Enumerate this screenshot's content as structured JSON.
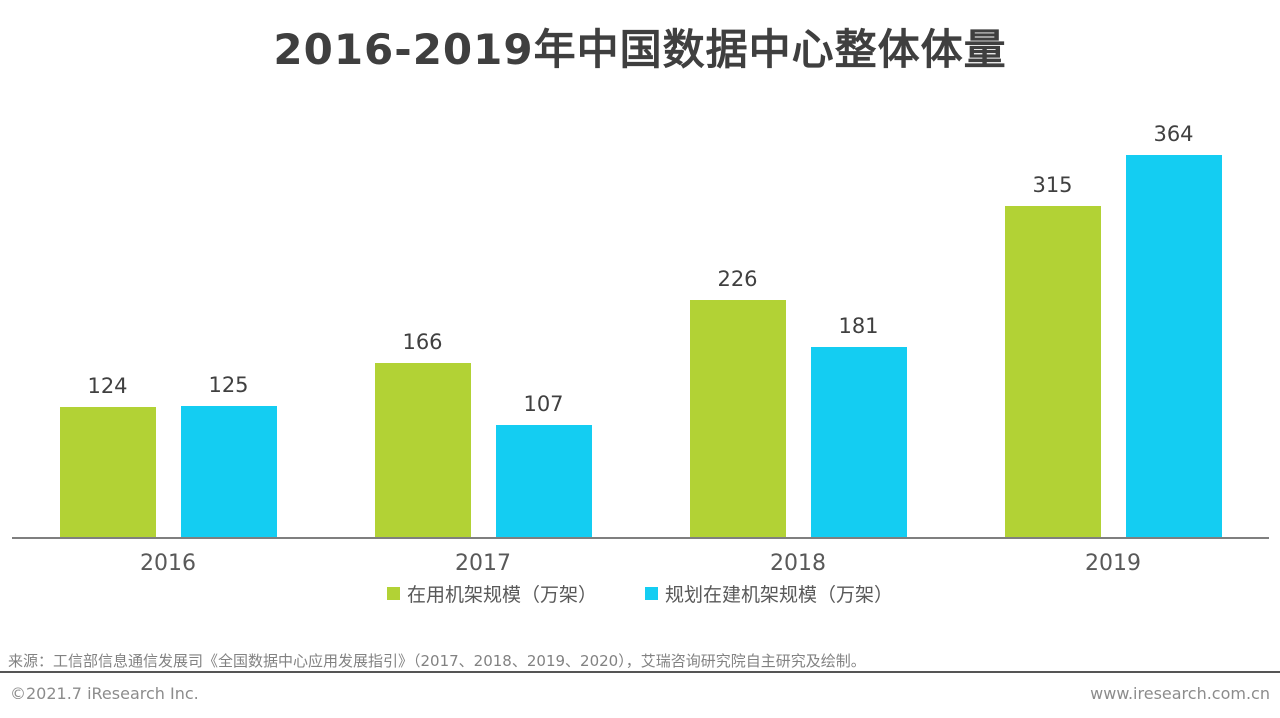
{
  "title": "2016-2019年中国数据中心整体体量",
  "chart_data": {
    "type": "bar",
    "categories": [
      "2016",
      "2017",
      "2018",
      "2019"
    ],
    "series": [
      {
        "name": "在用机架规模（万架）",
        "color": "#b2d235",
        "values": [
          124,
          166,
          226,
          315
        ]
      },
      {
        "name": "规划在建机架规模（万架）",
        "color": "#14cdf2",
        "values": [
          125,
          107,
          181,
          364
        ]
      }
    ],
    "ylim": [
      0,
      400
    ],
    "grid": false,
    "y_axis_visible": false,
    "value_labels": true,
    "legend_position": "bottom"
  },
  "legend": {
    "items": [
      {
        "label": "在用机架规模（万架）",
        "color": "#b2d235"
      },
      {
        "label": "规划在建机架规模（万架）",
        "color": "#14cdf2"
      }
    ]
  },
  "source": "来源：工信部信息通信发展司《全国数据中心应用发展指引》（2017、2018、2019、2020），艾瑞咨询研究院自主研究及绘制。",
  "footer": {
    "copyright": "©2021.7 iResearch Inc.",
    "website": "www.iresearch.com.cn"
  },
  "colors": {
    "series_green": "#b2d235",
    "series_blue": "#14cdf2",
    "axis_line": "#7f7f7f",
    "title_text": "#3f3f3f",
    "label_text": "#404040",
    "tick_text": "#595959",
    "source_text": "#828282",
    "divider": "#555555"
  }
}
